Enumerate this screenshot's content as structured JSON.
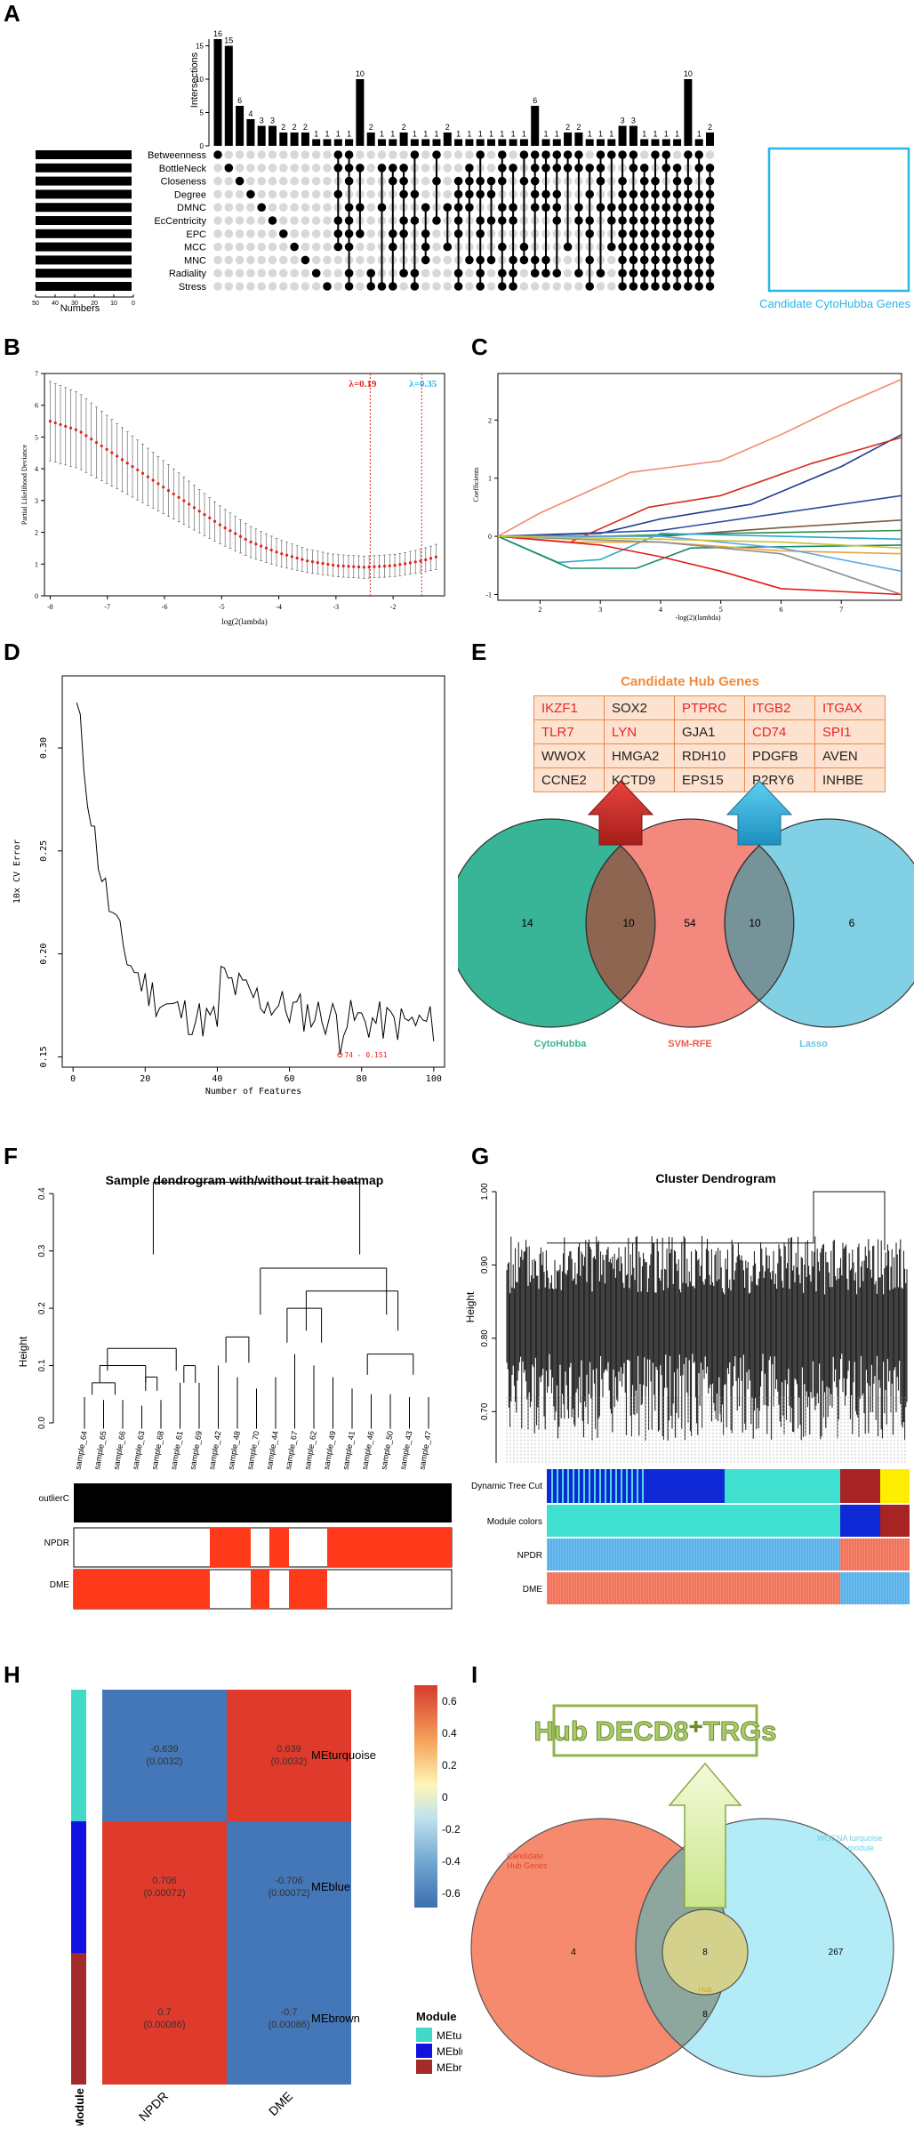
{
  "panels": [
    "A",
    "B",
    "C",
    "D",
    "E",
    "F",
    "G",
    "H",
    "I"
  ],
  "panelA": {
    "bars": [
      16,
      15,
      6,
      4,
      3,
      3,
      2,
      2,
      2,
      1,
      1,
      1,
      1,
      10,
      2,
      1,
      1,
      2,
      1,
      1,
      1,
      2,
      1,
      1,
      1,
      1,
      1,
      1,
      1,
      6,
      1,
      1,
      2,
      2,
      1,
      1,
      1,
      3,
      3,
      1,
      1,
      1,
      1,
      10,
      1,
      2
    ],
    "sets": [
      "Betweenness",
      "BottleNeck",
      "Closeness",
      "Degree",
      "DMNC",
      "EcCentricity",
      "EPC",
      "MCC",
      "MNC",
      "Radiality",
      "Stress"
    ],
    "ylabel": "Intersections",
    "yticks": [
      "0",
      "5",
      "10",
      "15"
    ],
    "xlabel": "Numbers",
    "xticks": [
      "50",
      "40",
      "30",
      "20",
      "10",
      "0"
    ],
    "highlight_label": "Candidate CytoHubba Genes"
  },
  "panelB": {
    "chart_data": {
      "type": "line",
      "xlabel": "log(2(lambda)",
      "ylabel": "Partial Likelihood Deviance",
      "xticks": [
        "-8",
        "-7",
        "-6",
        "-5",
        "-4",
        "-3",
        "-2"
      ],
      "yticks": [
        "0",
        "1",
        "2",
        "3",
        "4",
        "5",
        "6",
        "7"
      ],
      "xlim": [
        -8.1,
        -1.1
      ],
      "ylim": [
        0,
        7
      ],
      "x": [
        -8.0,
        -7.5,
        -7.0,
        -6.5,
        -6.0,
        -5.5,
        -5.0,
        -4.5,
        -4.0,
        -3.5,
        -3.0,
        -2.5,
        -2.0,
        -1.5,
        -1.2
      ],
      "y": [
        5.5,
        5.2,
        4.6,
        4.0,
        3.4,
        2.8,
        2.2,
        1.7,
        1.35,
        1.1,
        0.95,
        0.9,
        0.95,
        1.1,
        1.25
      ],
      "lambda_min_label": "λ=0.19",
      "lambda_1se_label": "λ=0.35",
      "lambda_min_x": -2.4,
      "lambda_1se_x": -1.5
    }
  },
  "panelC": {
    "xlabel": "-log(2)(lambda)",
    "ylabel": "Coefficients",
    "xticks": [
      "2",
      "3",
      "4",
      "5",
      "6",
      "7"
    ],
    "yticks": [
      "-1",
      "0",
      "1",
      "2"
    ]
  },
  "panelD": {
    "chart_data": {
      "type": "line",
      "xlabel": "Number of Features",
      "ylabel": "10x CV Error",
      "xticks": [
        "0",
        "20",
        "40",
        "60",
        "80",
        "100"
      ],
      "yticks": [
        "0.15",
        "0.20",
        "0.25",
        "0.30"
      ],
      "xlim": [
        -3,
        103
      ],
      "ylim": [
        0.145,
        0.335
      ],
      "min_point_label": "74 - 0.151",
      "min_x": 74,
      "min_y": 0.151
    }
  },
  "panelE": {
    "title": "Candidate Hub Genes",
    "table": [
      [
        "IKZF1",
        "SOX2",
        "PTPRC",
        "ITGB2",
        "ITGAX"
      ],
      [
        "TLR7",
        "LYN",
        "GJA1",
        "CD74",
        "SPI1"
      ],
      [
        "WWOX",
        "HMGA2",
        "RDH10",
        "PDGFB",
        "AVEN"
      ],
      [
        "CCNE2",
        "KCTD9",
        "EPS15",
        "P2RY6",
        "INHBE"
      ]
    ],
    "red_cells": [
      [
        0,
        0
      ],
      [
        0,
        2
      ],
      [
        0,
        3
      ],
      [
        0,
        4
      ],
      [
        1,
        0
      ],
      [
        1,
        1
      ],
      [
        1,
        3
      ],
      [
        1,
        4
      ]
    ],
    "venn": {
      "left": "14",
      "left_mid": "10",
      "mid": "54",
      "right_mid": "10",
      "right": "6"
    },
    "labels": {
      "left": "CytoHubba",
      "mid": "SVM-RFE",
      "right": "Lasso"
    },
    "colors": {
      "left": "#37b596",
      "mid": "#ee5a4e",
      "right": "#66c6dd"
    }
  },
  "panelF": {
    "title": "Sample dendrogram with/without trait heatmap",
    "ylabel": "Height",
    "yticks": [
      "0.0",
      "0.1",
      "0.2",
      "0.3",
      "0.4"
    ],
    "samples": [
      "sample_64",
      "sample_65",
      "sample_66",
      "sample_63",
      "sample_68",
      "sample_61",
      "sample_69",
      "sample_42",
      "sample_48",
      "sample_70",
      "sample_44",
      "sample_67",
      "sample_62",
      "sample_49",
      "sample_41",
      "sample_46",
      "sample_50",
      "sample_43",
      "sample_47"
    ],
    "rows": [
      "outlierC",
      "NPDR",
      "DME"
    ]
  },
  "panelG": {
    "title": "Cluster Dendrogram",
    "ylabel": "Height",
    "yticks": [
      "0.70",
      "0.80",
      "0.90",
      "1.00"
    ],
    "rows": [
      "Dynamic Tree Cut",
      "Module colors",
      "NPDR",
      "DME"
    ]
  },
  "panelH": {
    "cols": [
      "NPDR",
      "DME"
    ],
    "rows": [
      "MEturquoise",
      "MEblue",
      "MEbrown"
    ],
    "cells": [
      [
        "-0.639\n(0.0032)",
        "0.639\n(0.0032)"
      ],
      [
        "0.706\n(0.00072)",
        "-0.706\n(0.00072)"
      ],
      [
        "0.7\n(0.00086)",
        "-0.7\n(0.00086)"
      ]
    ],
    "colorbar": [
      "0.6",
      "0.4",
      "0.2",
      "0",
      "-0.2",
      "-0.4",
      "-0.6"
    ],
    "legend_title": "Module",
    "legend": [
      "MEturquoi",
      "MEblue",
      "MEbrown"
    ],
    "module_label": "Module"
  },
  "panelI": {
    "banner": "Hub DECD8⁺TRGs",
    "left_label": "Candidate\nHub Genes",
    "right_label": "WGCNA turquoise\nmodule",
    "left_count": "4",
    "center_count": "8",
    "inner_count": "8",
    "right_count": "267",
    "inner_label": "Hub"
  }
}
